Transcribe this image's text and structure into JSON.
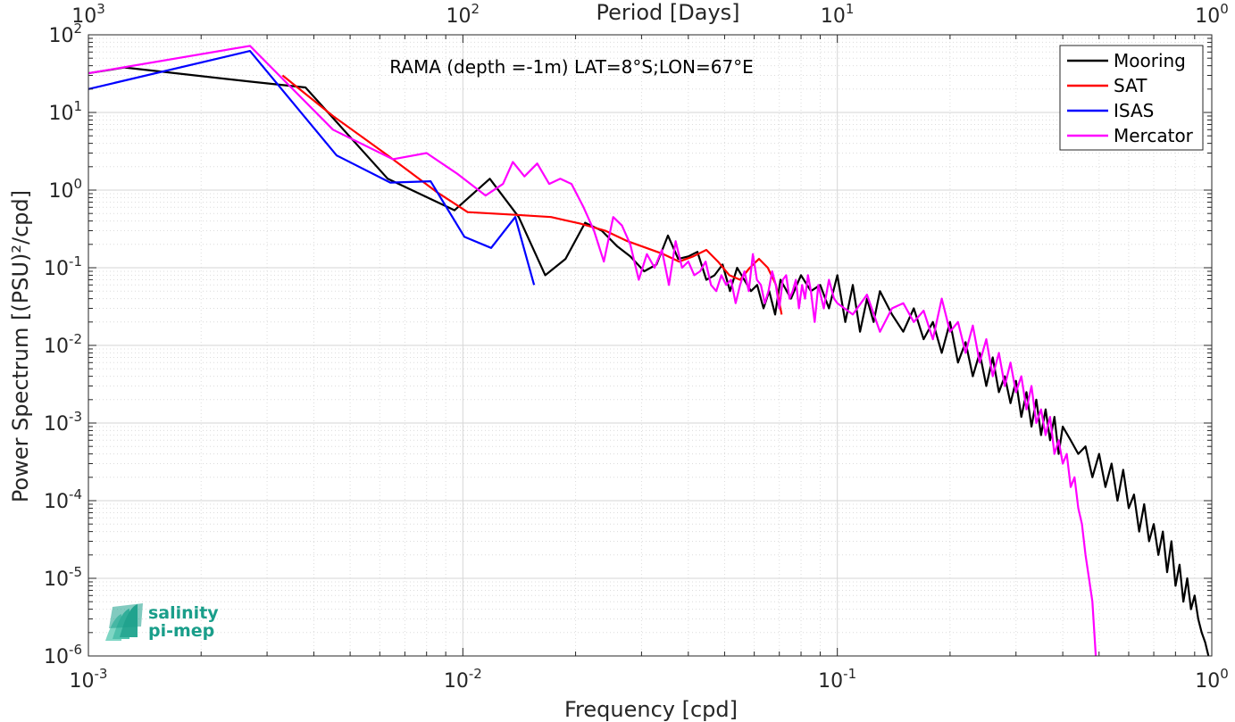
{
  "chart_data": {
    "type": "line",
    "title": "RAMA (depth =-1m) LAT=8°S;LON=67°E",
    "xlabel": "Frequency [cpd]",
    "ylabel": "Power Spectrum [(PSU)²/cpd]",
    "x2label": "Period [Days]",
    "xscale": "log",
    "yscale": "log",
    "xlim": [
      0.001,
      1
    ],
    "ylim": [
      1e-06,
      100
    ],
    "grid": true,
    "minor_grid": true,
    "legend_position": "top-right",
    "x_ticks": [
      {
        "base": "10",
        "exp": "-3"
      },
      {
        "base": "10",
        "exp": "-2"
      },
      {
        "base": "10",
        "exp": "-1"
      },
      {
        "base": "10",
        "exp": "0"
      }
    ],
    "y_ticks": [
      {
        "base": "10",
        "exp": "-6"
      },
      {
        "base": "10",
        "exp": "-5"
      },
      {
        "base": "10",
        "exp": "-4"
      },
      {
        "base": "10",
        "exp": "-3"
      },
      {
        "base": "10",
        "exp": "-2"
      },
      {
        "base": "10",
        "exp": "-1"
      },
      {
        "base": "10",
        "exp": "0"
      },
      {
        "base": "10",
        "exp": "1"
      },
      {
        "base": "10",
        "exp": "2"
      }
    ],
    "top_ticks": [
      {
        "base": "10",
        "exp": "3"
      },
      {
        "base": "10",
        "exp": "2"
      },
      {
        "base": "10",
        "exp": "1"
      },
      {
        "base": "10",
        "exp": "0"
      }
    ],
    "series": [
      {
        "name": "Mooring",
        "color": "#000000",
        "x": [
          0.001,
          0.00125,
          0.0027,
          0.0038,
          0.0063,
          0.0095,
          0.0118,
          0.0141,
          0.0166,
          0.0188,
          0.0212,
          0.0235,
          0.0258,
          0.028,
          0.0305,
          0.0329,
          0.0353,
          0.0376,
          0.04,
          0.0423,
          0.0447,
          0.047,
          0.0494,
          0.0517,
          0.054,
          0.0564,
          0.0588,
          0.0611,
          0.0635,
          0.0658,
          0.0682,
          0.0705,
          0.0752,
          0.08,
          0.085,
          0.09,
          0.095,
          0.1,
          0.105,
          0.11,
          0.115,
          0.12,
          0.125,
          0.13,
          0.14,
          0.15,
          0.16,
          0.17,
          0.18,
          0.19,
          0.2,
          0.21,
          0.22,
          0.23,
          0.24,
          0.25,
          0.26,
          0.27,
          0.28,
          0.29,
          0.3,
          0.31,
          0.32,
          0.33,
          0.34,
          0.35,
          0.36,
          0.37,
          0.38,
          0.39,
          0.4,
          0.42,
          0.44,
          0.46,
          0.48,
          0.5,
          0.52,
          0.54,
          0.56,
          0.58,
          0.6,
          0.62,
          0.64,
          0.66,
          0.68,
          0.7,
          0.72,
          0.74,
          0.76,
          0.78,
          0.8,
          0.82,
          0.84,
          0.86,
          0.88,
          0.9,
          0.92,
          0.94,
          0.96,
          0.98
        ],
        "y": [
          32,
          38,
          25,
          21,
          1.4,
          0.55,
          1.4,
          0.45,
          0.08,
          0.13,
          0.38,
          0.3,
          0.19,
          0.14,
          0.09,
          0.11,
          0.26,
          0.13,
          0.14,
          0.16,
          0.07,
          0.08,
          0.11,
          0.05,
          0.1,
          0.07,
          0.05,
          0.06,
          0.03,
          0.05,
          0.025,
          0.07,
          0.04,
          0.08,
          0.05,
          0.06,
          0.03,
          0.08,
          0.02,
          0.06,
          0.015,
          0.04,
          0.02,
          0.05,
          0.025,
          0.015,
          0.03,
          0.012,
          0.02,
          0.008,
          0.02,
          0.006,
          0.011,
          0.004,
          0.008,
          0.003,
          0.007,
          0.0025,
          0.004,
          0.0018,
          0.0035,
          0.0012,
          0.0025,
          0.0009,
          0.002,
          0.0007,
          0.0015,
          0.0006,
          0.0012,
          0.0004,
          0.0009,
          0.0006,
          0.0004,
          0.0005,
          0.0002,
          0.0004,
          0.00015,
          0.0003,
          0.0001,
          0.00025,
          8e-05,
          0.00012,
          4e-05,
          9e-05,
          3e-05,
          5e-05,
          2e-05,
          4e-05,
          1.2e-05,
          3e-05,
          8e-06,
          1.5e-05,
          5e-06,
          1e-05,
          4e-06,
          6e-06,
          3e-06,
          2e-06,
          1.5e-06,
          1e-06
        ]
      },
      {
        "name": "SAT",
        "color": "#ff0000",
        "x": [
          0.0033,
          0.0045,
          0.0063,
          0.0085,
          0.0103,
          0.0138,
          0.0172,
          0.0206,
          0.024,
          0.0275,
          0.0309,
          0.0343,
          0.0378,
          0.0412,
          0.0447,
          0.048,
          0.0515,
          0.055,
          0.0584,
          0.0618,
          0.0652,
          0.0686,
          0.071
        ],
        "y": [
          30,
          9,
          2.8,
          0.95,
          0.52,
          0.48,
          0.45,
          0.37,
          0.3,
          0.22,
          0.18,
          0.15,
          0.12,
          0.14,
          0.17,
          0.12,
          0.08,
          0.07,
          0.1,
          0.13,
          0.1,
          0.06,
          0.025
        ]
      },
      {
        "name": "ISAS",
        "color": "#0000ff",
        "x": [
          0.001,
          0.0027,
          0.0046,
          0.0064,
          0.0082,
          0.0101,
          0.0119,
          0.0138,
          0.0155
        ],
        "y": [
          20,
          62,
          2.8,
          1.25,
          1.3,
          0.25,
          0.18,
          0.45,
          0.06
        ]
      },
      {
        "name": "Mercator",
        "color": "#ff00ff",
        "x": [
          0.001,
          0.0027,
          0.0045,
          0.0065,
          0.008,
          0.0097,
          0.0115,
          0.0128,
          0.0136,
          0.0146,
          0.0158,
          0.017,
          0.0182,
          0.0195,
          0.021,
          0.0224,
          0.0238,
          0.0252,
          0.0266,
          0.028,
          0.0295,
          0.031,
          0.0325,
          0.034,
          0.0355,
          0.037,
          0.0385,
          0.04,
          0.0415,
          0.043,
          0.0445,
          0.046,
          0.0475,
          0.049,
          0.0505,
          0.052,
          0.0535,
          0.055,
          0.0565,
          0.058,
          0.0595,
          0.061,
          0.0625,
          0.064,
          0.0655,
          0.067,
          0.0685,
          0.07,
          0.0715,
          0.073,
          0.0745,
          0.076,
          0.0775,
          0.079,
          0.0805,
          0.082,
          0.0835,
          0.085,
          0.087,
          0.089,
          0.092,
          0.095,
          0.098,
          0.1,
          0.11,
          0.12,
          0.13,
          0.14,
          0.15,
          0.16,
          0.17,
          0.18,
          0.19,
          0.2,
          0.21,
          0.22,
          0.23,
          0.24,
          0.25,
          0.26,
          0.27,
          0.28,
          0.29,
          0.3,
          0.31,
          0.32,
          0.33,
          0.34,
          0.35,
          0.36,
          0.37,
          0.38,
          0.39,
          0.4,
          0.41,
          0.42,
          0.43,
          0.44,
          0.45,
          0.46,
          0.47,
          0.48,
          0.49
        ],
        "y": [
          32,
          72,
          6,
          2.5,
          3,
          1.6,
          0.85,
          1.2,
          2.3,
          1.5,
          2.2,
          1.2,
          1.4,
          1.2,
          0.6,
          0.3,
          0.12,
          0.45,
          0.35,
          0.2,
          0.07,
          0.15,
          0.1,
          0.17,
          0.06,
          0.22,
          0.1,
          0.12,
          0.08,
          0.09,
          0.12,
          0.06,
          0.05,
          0.08,
          0.06,
          0.07,
          0.035,
          0.06,
          0.09,
          0.05,
          0.15,
          0.07,
          0.06,
          0.035,
          0.05,
          0.09,
          0.06,
          0.03,
          0.07,
          0.08,
          0.04,
          0.05,
          0.07,
          0.03,
          0.06,
          0.04,
          0.08,
          0.05,
          0.02,
          0.06,
          0.03,
          0.07,
          0.04,
          0.035,
          0.025,
          0.045,
          0.015,
          0.03,
          0.035,
          0.02,
          0.028,
          0.012,
          0.04,
          0.015,
          0.02,
          0.008,
          0.018,
          0.006,
          0.012,
          0.004,
          0.008,
          0.003,
          0.006,
          0.0025,
          0.004,
          0.0015,
          0.003,
          0.001,
          0.0015,
          0.0007,
          0.0012,
          0.0004,
          0.0006,
          0.0003,
          0.0004,
          0.00015,
          0.0002,
          8e-05,
          5e-05,
          2e-05,
          1e-05,
          5e-06,
          1e-06
        ]
      }
    ]
  },
  "logo": {
    "line1": "salinity",
    "line2": "pi-mep",
    "color": "#1a9e8a"
  }
}
